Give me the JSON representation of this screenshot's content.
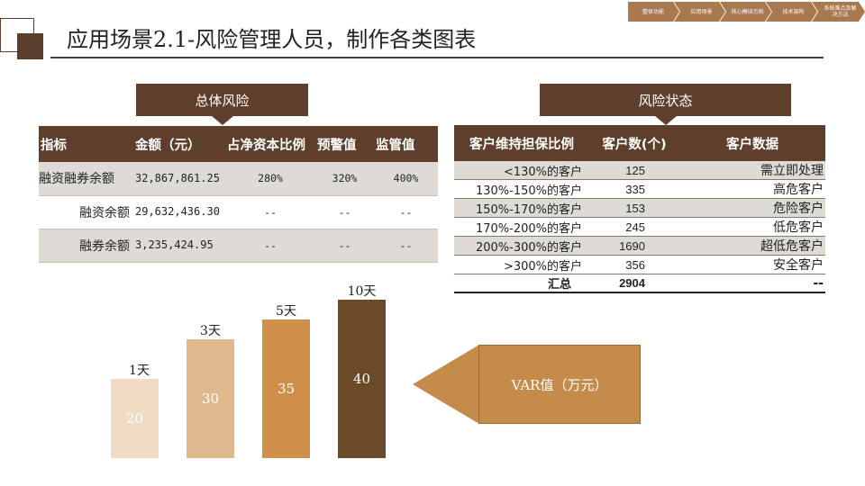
{
  "page_title": "应用场景2.1-风险管理人员，制作各类图表",
  "nav": [
    {
      "label": "整体功能"
    },
    {
      "label": "应用场景"
    },
    {
      "label": "核心模块示例"
    },
    {
      "label": "技术架构"
    },
    {
      "label": "系统难点及解决方法"
    }
  ],
  "left_section": {
    "label": "总体风险",
    "headers": [
      "指标",
      "金额（元）",
      "占净资本比例",
      "预警值",
      "监管值"
    ],
    "rows": [
      {
        "name": "融资融券余额",
        "amount": "32,867,861.25",
        "ratio": "280%",
        "warning": "320%",
        "regulatory": "400%"
      },
      {
        "name": "融资余额",
        "amount": "29,632,436.30",
        "ratio": "--",
        "warning": "--",
        "regulatory": "--"
      },
      {
        "name": "融券余额",
        "amount": "3,235,424.95",
        "ratio": "--",
        "warning": "--",
        "regulatory": "--"
      }
    ]
  },
  "right_section": {
    "label": "风险状态",
    "headers": [
      "客户维持担保比例",
      "客户数(个)",
      "客户数据"
    ],
    "rows": [
      {
        "range": "<130%的客户",
        "count": "125",
        "status": "需立即处理"
      },
      {
        "range": "130%-150%的客户",
        "count": "335",
        "status": "高危客户"
      },
      {
        "range": "150%-170%的客户",
        "count": "153",
        "status": "危险客户"
      },
      {
        "range": "170%-200%的客户",
        "count": "245",
        "status": "低危客户"
      },
      {
        "range": "200%-300%的客户",
        "count": "1690",
        "status": "超低危客户"
      },
      {
        "range": ">300%的客户",
        "count": "356",
        "status": "安全客户"
      }
    ],
    "total": {
      "label": "汇总",
      "count": "2904",
      "status": "--"
    }
  },
  "chart_data": {
    "type": "bar",
    "categories": [
      "1天",
      "3天",
      "5天",
      "10天"
    ],
    "values": [
      20,
      30,
      35,
      40
    ],
    "colors": [
      "#f0dcc4",
      "#dfb98d",
      "#cf8f4a",
      "#6b4a2a"
    ],
    "ylim": [
      0,
      45
    ]
  },
  "var_label": "VAR值（万元）"
}
